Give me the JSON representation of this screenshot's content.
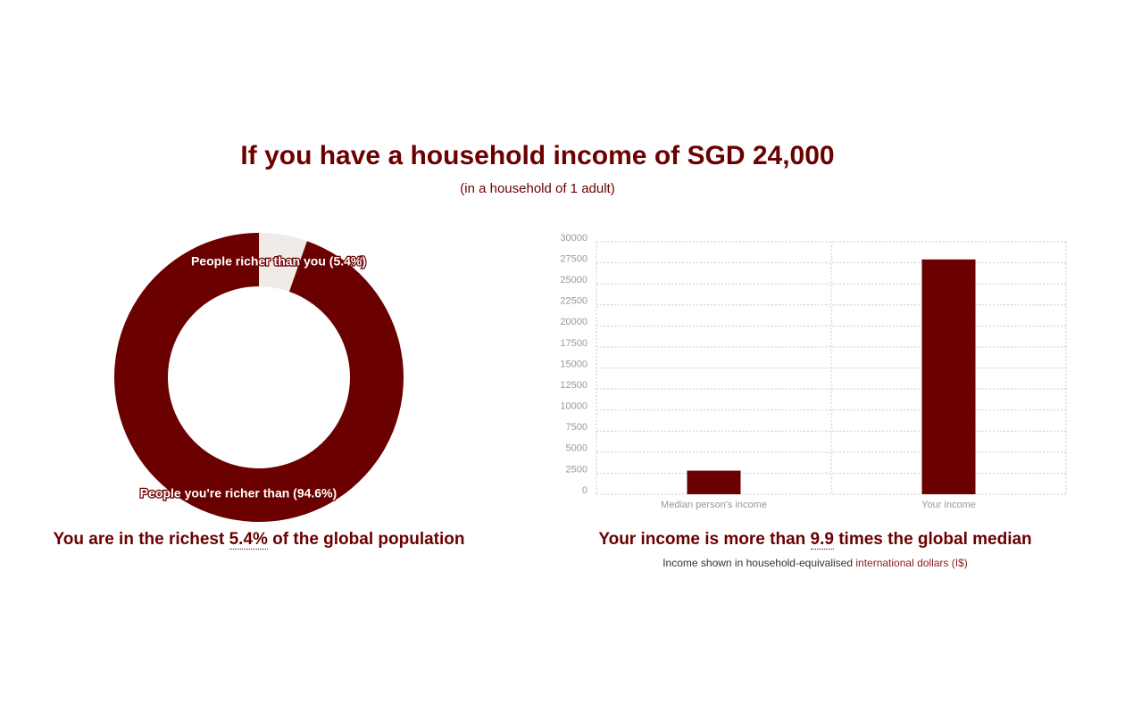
{
  "header": {
    "title": "If you have a household income of SGD 24,000",
    "subtitle": "(in a household of 1 adult)"
  },
  "chart_data": [
    {
      "type": "pie",
      "donut": true,
      "labels": [
        "People richer than you (5.4%)",
        "People you're richer than (94.6%)"
      ],
      "values": [
        5.4,
        94.6
      ],
      "colors": [
        "#efebe6",
        "#6b0000"
      ]
    },
    {
      "type": "bar",
      "categories": [
        "Median person's income",
        "Your income"
      ],
      "values": [
        2800,
        27900
      ],
      "color": "#6b0000",
      "ylim": [
        0,
        30000
      ],
      "yticks": [
        0,
        2500,
        5000,
        7500,
        10000,
        12500,
        15000,
        17500,
        20000,
        22500,
        25000,
        27500,
        30000
      ],
      "grid": true
    }
  ],
  "captions": [
    {
      "parts": [
        "You are in the richest ",
        "5.4%",
        " of the global population"
      ]
    },
    {
      "parts": [
        "Your income is more than ",
        "9.9",
        " times the global median"
      ]
    }
  ],
  "note": {
    "text": "Income shown in household-equivalised ",
    "link": "international dollars (I$)"
  }
}
